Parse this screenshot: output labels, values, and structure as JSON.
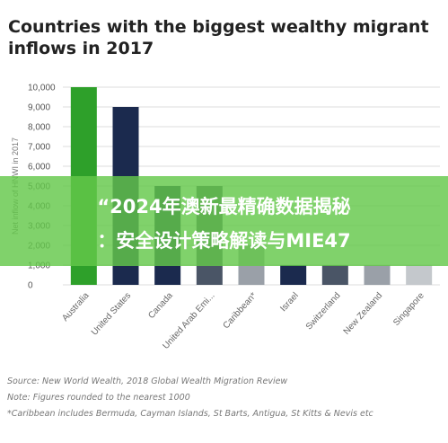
{
  "chart_data": {
    "type": "bar",
    "title": "Countries with the biggest wealthy migrant inflows in 2017",
    "ylabel": "Net inflow of HNWI in 2017",
    "xlabel": "",
    "ylim": [
      0,
      10000
    ],
    "yticks": [
      "0",
      "1,000",
      "2,000",
      "3,000",
      "4,000",
      "5,000",
      "6,000",
      "7,000",
      "8,000",
      "9,000",
      "10,000"
    ],
    "grid": true,
    "categories": [
      "Australia",
      "United States",
      "Canada",
      "United Arab Emi...",
      "Caribbean*",
      "Israel",
      "Switzerland",
      "New Zealand",
      "Singapore"
    ],
    "values": [
      10000,
      9000,
      5000,
      5000,
      2000,
      1000,
      1000,
      1000,
      1000
    ],
    "colors": [
      "#2ea02a",
      "#1b2a4e",
      "#1b2a4e",
      "#4a5566",
      "#9aa0a8",
      "#1b2a4e",
      "#4a5566",
      "#9aa0a8",
      "#c4c8cc"
    ]
  },
  "overlay": {
    "line1": "“2024年澳新最精确数据揭秘",
    "line2": "：安全设计策略解读与MIE47"
  },
  "footer": {
    "source": "Source: New World Wealth, 2018 Global Wealth Migration Review",
    "note": "Note: Figures rounded to the nearest 1000",
    "caribbean": "*Caribbean includes Bermuda, Cayman Islands, St Barts, Antigua, St Kitts & Nevis etc"
  }
}
